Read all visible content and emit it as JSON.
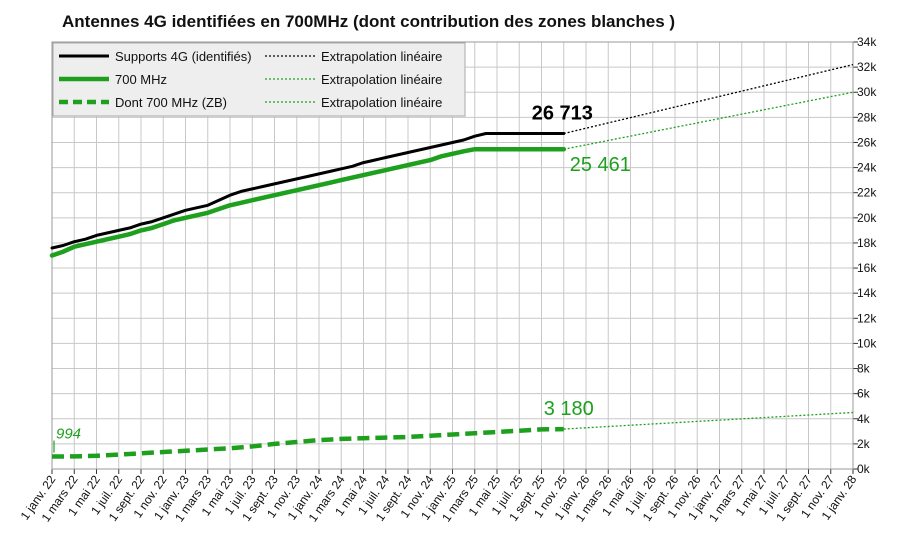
{
  "chart_data": {
    "type": "line",
    "title": "Antennes 4G identifiées en 700MHz (dont contribution des zones blanches )",
    "xlabel": "",
    "ylabel": "",
    "ylim": [
      0,
      34000
    ],
    "yticks": [
      0,
      2000,
      4000,
      6000,
      8000,
      10000,
      12000,
      14000,
      16000,
      18000,
      20000,
      22000,
      24000,
      26000,
      28000,
      30000,
      32000,
      34000
    ],
    "ytick_labels": [
      "0k",
      "2k",
      "4k",
      "6k",
      "8k",
      "10k",
      "12k",
      "14k",
      "16k",
      "18k",
      "20k",
      "22k",
      "24k",
      "26k",
      "28k",
      "30k",
      "32k",
      "34k"
    ],
    "x_categories": [
      "1 janv. 22",
      "1 mars 22",
      "1 mai 22",
      "1 juil. 22",
      "1 sept. 22",
      "1 nov. 22",
      "1 janv. 23",
      "1 mars 23",
      "1 mai 23",
      "1 juil. 23",
      "1 sept. 23",
      "1 nov. 23",
      "1 janv. 24",
      "1 mars 24",
      "1 mai 24",
      "1 juil. 24",
      "1 sept. 24",
      "1 nov. 24",
      "1 janv. 25",
      "1 mars 25",
      "1 mai 25",
      "1 juil. 25",
      "1 sept. 25",
      "1 nov. 25",
      "1 janv. 26",
      "1 mars 26",
      "1 mai 26",
      "1 juil. 26",
      "1 sept. 26",
      "1 nov. 26",
      "1 janv. 27",
      "1 mars 27",
      "1 mai 27",
      "1 juil. 27",
      "1 sept. 27",
      "1 nov. 27",
      "1 janv. 28"
    ],
    "series": [
      {
        "name": "Supports 4G (identifiés)",
        "color": "#000000",
        "style": "solid",
        "x": [
          0,
          0.5,
          1,
          1.5,
          2,
          2.5,
          3,
          3.5,
          4,
          4.5,
          5,
          5.5,
          6,
          6.5,
          7,
          7.5,
          8,
          8.5,
          9,
          9.5,
          10,
          10.5,
          11,
          11.5,
          12,
          12.5,
          13,
          13.5,
          14,
          14.5,
          15,
          15.5,
          16,
          16.5,
          17,
          17.5,
          18,
          18.5,
          19,
          19.5,
          20,
          20.5,
          21,
          21.5,
          22,
          22.5,
          23
        ],
        "values": [
          17600,
          17800,
          18100,
          18300,
          18600,
          18800,
          19000,
          19200,
          19500,
          19700,
          20000,
          20300,
          20600,
          20800,
          21000,
          21400,
          21800,
          22100,
          22300,
          22500,
          22700,
          22900,
          23100,
          23300,
          23500,
          23700,
          23900,
          24100,
          24400,
          24600,
          24800,
          25000,
          25200,
          25400,
          25600,
          25800,
          26000,
          26200,
          26500,
          26713,
          26713,
          26713,
          26713,
          26713,
          26713,
          26713,
          26713
        ]
      },
      {
        "name": "700 MHz",
        "color": "#1ea01e",
        "style": "solid-thick",
        "x": [
          0,
          0.5,
          1,
          1.5,
          2,
          2.5,
          3,
          3.5,
          4,
          4.5,
          5,
          5.5,
          6,
          6.5,
          7,
          7.5,
          8,
          8.5,
          9,
          9.5,
          10,
          10.5,
          11,
          11.5,
          12,
          12.5,
          13,
          13.5,
          14,
          14.5,
          15,
          15.5,
          16,
          16.5,
          17,
          17.5,
          18,
          18.5,
          19,
          19.5,
          20,
          20.5,
          21,
          21.5,
          22,
          22.5,
          23
        ],
        "values": [
          17000,
          17300,
          17700,
          17900,
          18100,
          18300,
          18500,
          18700,
          19000,
          19200,
          19500,
          19800,
          20000,
          20200,
          20400,
          20700,
          21000,
          21200,
          21400,
          21600,
          21800,
          22000,
          22200,
          22400,
          22600,
          22800,
          23000,
          23200,
          23400,
          23600,
          23800,
          24000,
          24200,
          24400,
          24600,
          24900,
          25100,
          25300,
          25461,
          25461,
          25461,
          25461,
          25461,
          25461,
          25461,
          25461,
          25461
        ]
      },
      {
        "name": "Dont 700 MHz (ZB)",
        "color": "#1ea01e",
        "style": "dashed-thick",
        "x": [
          0,
          1,
          2,
          3,
          4,
          5,
          6,
          7,
          8,
          9,
          10,
          11,
          12,
          13,
          14,
          15,
          16,
          17,
          18,
          19,
          20,
          21,
          22,
          23
        ],
        "values": [
          994,
          1000,
          1050,
          1150,
          1250,
          1350,
          1450,
          1550,
          1650,
          1800,
          2000,
          2150,
          2300,
          2400,
          2450,
          2500,
          2550,
          2650,
          2750,
          2850,
          2950,
          3050,
          3150,
          3180
        ]
      }
    ],
    "trendlines": [
      {
        "name": "Extrapolation linéaire",
        "color": "#000000",
        "style": "dotted",
        "from": [
          23,
          26713
        ],
        "to": [
          36,
          32200
        ]
      },
      {
        "name": "Extrapolation linéaire",
        "color": "#1ea01e",
        "style": "dotted",
        "from": [
          23,
          25461
        ],
        "to": [
          36,
          30000
        ]
      },
      {
        "name": "Extrapolation linéaire",
        "color": "#1ea01e",
        "style": "dotted",
        "from": [
          23,
          3180
        ],
        "to": [
          36,
          4500
        ]
      }
    ],
    "annotations": [
      {
        "text": "26 713",
        "at": [
          23,
          26713
        ],
        "color": "#000000"
      },
      {
        "text": "25 461",
        "at": [
          23,
          25461
        ],
        "color": "#1ea01e"
      },
      {
        "text": "3 180",
        "at": [
          23,
          3180
        ],
        "color": "#1ea01e"
      },
      {
        "text": "994",
        "at": [
          0,
          994
        ],
        "color": "#1ea01e"
      }
    ],
    "legend": {
      "position": "top-left",
      "entries": [
        {
          "label": "Supports 4G (identifiés)",
          "color": "#000000",
          "style": "solid"
        },
        {
          "label": "Extrapolation linéaire",
          "color": "#000000",
          "style": "dotted"
        },
        {
          "label": "700 MHz",
          "color": "#1ea01e",
          "style": "solid-thick"
        },
        {
          "label": "Extrapolation linéaire",
          "color": "#1ea01e",
          "style": "dotted"
        },
        {
          "label": "Dont 700 MHz (ZB)",
          "color": "#1ea01e",
          "style": "dashed-thick"
        },
        {
          "label": "Extrapolation linéaire",
          "color": "#1ea01e",
          "style": "dotted"
        }
      ]
    },
    "grid": true
  }
}
